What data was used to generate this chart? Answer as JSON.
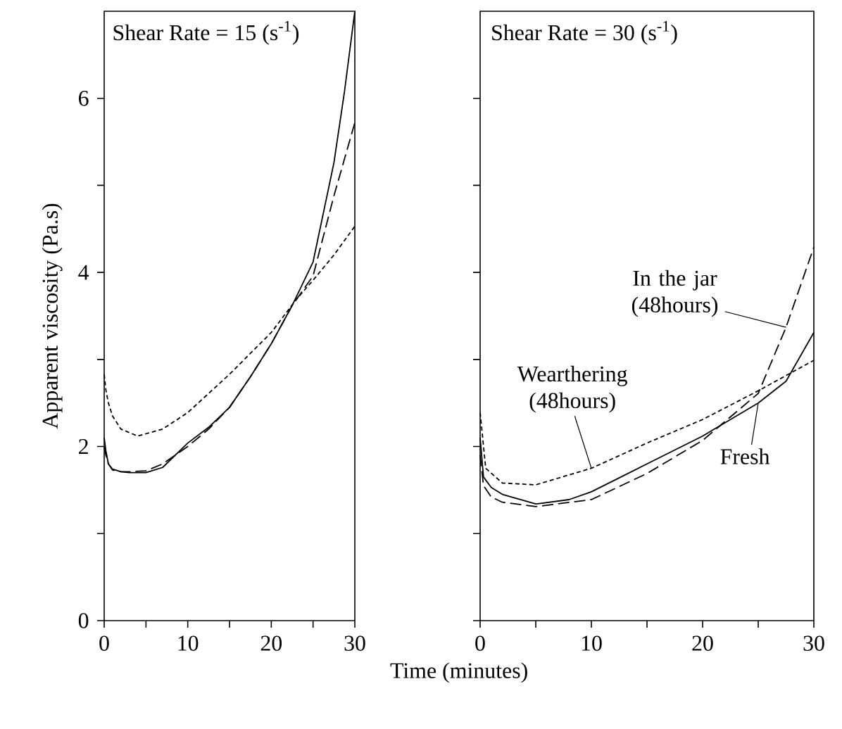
{
  "chart_data": [
    {
      "type": "line",
      "title": "Shear Rate = 15 (s$^{-1}$)",
      "xlabel": "Time (minutes)",
      "ylabel": "Apparent viscosity (Pa.s)",
      "xlim": [
        0,
        30
      ],
      "ylim": [
        0,
        7
      ],
      "xticks": [
        0,
        10,
        20,
        30
      ],
      "yticks": [
        0,
        2,
        4,
        6
      ],
      "series": [
        {
          "color": "#000000",
          "line_style": "solid",
          "x": [
            0,
            0.2,
            0.5,
            1,
            2,
            3,
            5,
            7,
            10,
            12.5,
            15,
            17.5,
            20,
            22.5,
            25,
            27.5,
            28.75,
            30
          ],
          "values": [
            2.1,
            1.95,
            1.8,
            1.74,
            1.71,
            1.7,
            1.7,
            1.76,
            2.04,
            2.22,
            2.45,
            2.8,
            3.18,
            3.62,
            4.12,
            5.26,
            6.07,
            7.0
          ]
        },
        {
          "color": "#000000",
          "line_style": "dashed",
          "x": [
            0,
            0.2,
            0.5,
            1,
            2,
            3,
            5,
            7,
            10,
            12.5,
            15,
            17.5,
            20,
            22.5,
            25,
            27.5,
            30
          ],
          "values": [
            2.0,
            1.9,
            1.8,
            1.73,
            1.71,
            1.71,
            1.72,
            1.8,
            2.0,
            2.2,
            2.45,
            2.8,
            3.18,
            3.62,
            3.96,
            4.88,
            5.72
          ]
        },
        {
          "color": "#000000",
          "line_style": "dotted",
          "x": [
            0,
            0.2,
            0.5,
            1,
            2,
            4,
            7,
            10,
            15,
            20,
            23,
            25,
            27.5,
            30
          ],
          "values": [
            2.83,
            2.65,
            2.5,
            2.35,
            2.2,
            2.12,
            2.2,
            2.39,
            2.83,
            3.31,
            3.69,
            3.91,
            4.2,
            4.53
          ]
        }
      ]
    },
    {
      "type": "line",
      "title": "Shear Rate = 30 (s$^{-1}$)",
      "xlim": [
        0,
        30
      ],
      "ylim": [
        0,
        7
      ],
      "xticks": [
        0,
        10,
        20,
        30
      ],
      "yticks": [
        0,
        2,
        4,
        6
      ],
      "tick_labels": "x",
      "series": [
        {
          "name": "Fresh",
          "color": "#000000",
          "line_style": "solid",
          "x": [
            0,
            0.3,
            1,
            2,
            5,
            8,
            10,
            12.5,
            15,
            20,
            25,
            27.5,
            30
          ],
          "values": [
            2.1,
            1.65,
            1.53,
            1.45,
            1.34,
            1.39,
            1.48,
            1.64,
            1.8,
            2.12,
            2.5,
            2.75,
            3.31
          ]
        },
        {
          "name": "In the jar (48hours)",
          "color": "#000000",
          "line_style": "dashed",
          "x": [
            0,
            0.3,
            1,
            2,
            5,
            10,
            15,
            20,
            25,
            27.5,
            30
          ],
          "values": [
            1.9,
            1.55,
            1.42,
            1.36,
            1.31,
            1.39,
            1.69,
            2.07,
            2.61,
            3.37,
            4.29
          ]
        },
        {
          "name": "Wearthering (48hours)",
          "color": "#000000",
          "line_style": "dotted",
          "x": [
            0,
            0.5,
            2,
            5,
            10,
            15,
            20,
            25,
            30
          ],
          "values": [
            2.39,
            1.75,
            1.58,
            1.56,
            1.75,
            2.04,
            2.31,
            2.64,
            2.99
          ]
        }
      ]
    }
  ]
}
